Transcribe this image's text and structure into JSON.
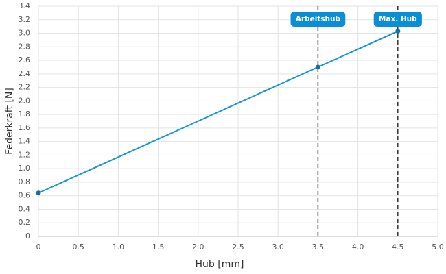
{
  "chart_data": {
    "type": "line",
    "x_label": "Hub [mm]",
    "y_label": "Federkraft [N]",
    "x": [
      0,
      3.5,
      4.5
    ],
    "series": [
      {
        "name": "Federkraft",
        "color": "#1596d2",
        "values": [
          0.64,
          2.5,
          3.03
        ]
      }
    ],
    "xlim": [
      0,
      5
    ],
    "ylim": [
      0,
      3.4
    ],
    "xticks": [
      0,
      0.5,
      {
        "value": 1,
        "label": "1.0"
      },
      1.5,
      {
        "value": 2,
        "label": "2.0"
      },
      2.5,
      {
        "value": 3,
        "label": "3.0"
      },
      3.5,
      {
        "value": 4,
        "label": "4.0"
      },
      4.5,
      {
        "value": 5,
        "label": "5.0"
      }
    ],
    "yticks": [
      0,
      0.2,
      0.4,
      0.6,
      0.8,
      {
        "value": 1,
        "label": "1.0"
      },
      1.2,
      1.4,
      1.6,
      1.8,
      {
        "value": 2,
        "label": "2.0"
      },
      2.2,
      2.4,
      2.6,
      2.8,
      {
        "value": 3,
        "label": "3.0"
      },
      3.2,
      3.4
    ],
    "grid": true,
    "annotations": [
      {
        "x": 3.5,
        "label": "Arbeitshub"
      },
      {
        "x": 4.5,
        "label": "Max. Hub"
      }
    ]
  }
}
